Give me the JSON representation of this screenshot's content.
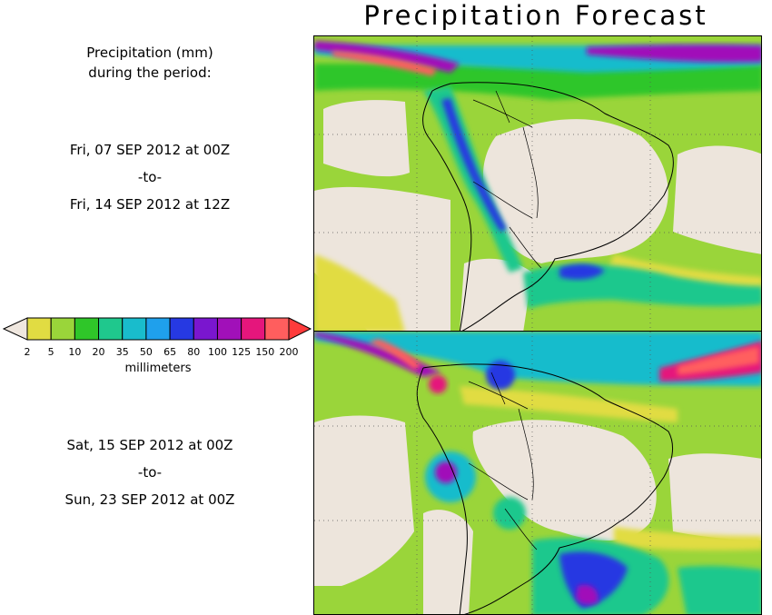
{
  "title": "Precipitation Forecast",
  "header": {
    "line1": "Precipitation (mm)",
    "line2": "during the period:"
  },
  "period1": {
    "start": "Fri, 07 SEP 2012 at 00Z",
    "sep": "-to-",
    "end": "Fri, 14 SEP 2012 at 12Z"
  },
  "period2": {
    "start": "Sat, 15 SEP 2012 at 00Z",
    "sep": "-to-",
    "end": "Sun, 23 SEP 2012 at 00Z"
  },
  "legend": {
    "units": "millimeters",
    "ticks": [
      "2",
      "5",
      "10",
      "20",
      "35",
      "50",
      "65",
      "80",
      "100",
      "125",
      "150",
      "200"
    ],
    "colors": [
      "#e1dc42",
      "#9ad53a",
      "#2fc629",
      "#1fc88d",
      "#19bccc",
      "#1fa0ec",
      "#2639e2",
      "#7a16cf",
      "#a110b9",
      "#e5167c",
      "#ff5e5e"
    ],
    "low_color": "#efe7df",
    "high_color": "#ff3b3b"
  },
  "colors": {
    "land": "#ede5dc",
    "yellow": "#e1dc42",
    "lime": "#9ad53a",
    "green": "#2fc629",
    "teal": "#1fc88d",
    "cyan": "#19bccc",
    "blue": "#2639e2",
    "purple": "#a110b9",
    "magenta": "#e5167c",
    "red": "#ff5e5e"
  }
}
